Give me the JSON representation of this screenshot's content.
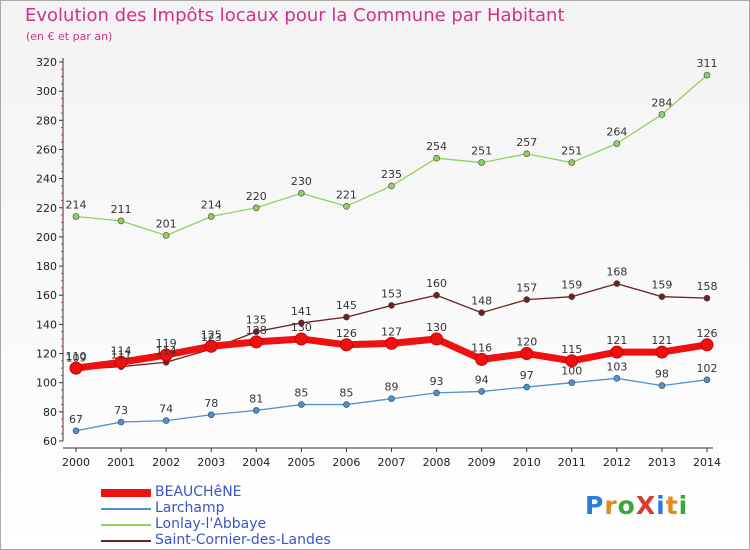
{
  "title": "Evolution des Impôts locaux pour la Commune par Habitant",
  "subtitle": "(en € et par an)",
  "logo": {
    "text": "ProXiti",
    "letter_colors": [
      "#2b7bd9",
      "#e28a1c",
      "#3aa53a",
      "#d93b2b",
      "#2b7bd9",
      "#e28a1c",
      "#3aa53a"
    ]
  },
  "chart_data": {
    "type": "line",
    "x": [
      2000,
      2001,
      2002,
      2003,
      2004,
      2005,
      2006,
      2007,
      2008,
      2009,
      2010,
      2011,
      2012,
      2013,
      2014
    ],
    "xticks": [
      "2000",
      "2001",
      "2002",
      "2003",
      "2004",
      "2005",
      "2006",
      "2007",
      "2008",
      "2009",
      "2010",
      "2011",
      "2012",
      "2013",
      "2014"
    ],
    "ylim": [
      60,
      320
    ],
    "yticks": [
      60,
      80,
      100,
      120,
      140,
      160,
      180,
      200,
      220,
      240,
      260,
      280,
      300,
      320
    ],
    "grid": false,
    "legend_position": "bottom-left",
    "series": [
      {
        "name": "Lonlay-l'Abbaye",
        "color": "#90d060",
        "values": [
          214,
          211,
          201,
          214,
          220,
          230,
          221,
          235,
          254,
          251,
          257,
          251,
          264,
          284,
          311
        ]
      },
      {
        "name": "Larchamp",
        "color": "#5090d0",
        "values": [
          67,
          73,
          74,
          78,
          81,
          85,
          85,
          89,
          93,
          94,
          97,
          100,
          103,
          98,
          102
        ]
      },
      {
        "name": "Saint-Cornier-des-Landes",
        "color": "#702020",
        "values": [
          109,
          111,
          114,
          123,
          135,
          141,
          145,
          153,
          160,
          148,
          157,
          159,
          168,
          159,
          158
        ]
      },
      {
        "name": "BEAUCHêNE",
        "color": "#ee1111",
        "values": [
          110,
          114,
          119,
          125,
          128,
          130,
          126,
          127,
          130,
          116,
          120,
          115,
          121,
          121,
          126
        ]
      }
    ]
  }
}
